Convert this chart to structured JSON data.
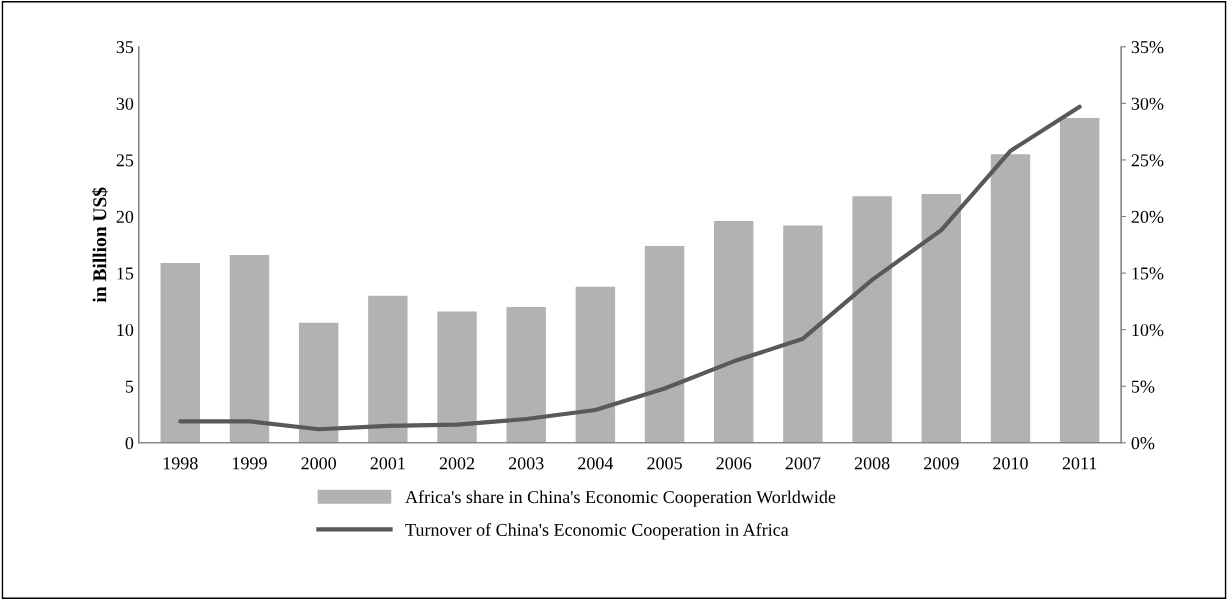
{
  "chart_data": {
    "type": "bar",
    "categories": [
      "1998",
      "1999",
      "2000",
      "2001",
      "2002",
      "2003",
      "2004",
      "2005",
      "2006",
      "2007",
      "2008",
      "2009",
      "2010",
      "2011"
    ],
    "ylabel": "in Billion US$",
    "ylim": [
      0,
      35
    ],
    "yticks": [
      0,
      5,
      10,
      15,
      20,
      25,
      30,
      35
    ],
    "y2lim": [
      0,
      35
    ],
    "y2ticks": [
      {
        "value": 0,
        "label": "0%"
      },
      {
        "value": 5,
        "label": "5%"
      },
      {
        "value": 10,
        "label": "10%"
      },
      {
        "value": 15,
        "label": "15%"
      },
      {
        "value": 20,
        "label": "20%"
      },
      {
        "value": 25,
        "label": "25%"
      },
      {
        "value": 30,
        "label": "30%"
      },
      {
        "value": 35,
        "label": "35%"
      }
    ],
    "legend": "bottom",
    "grid": false,
    "series": [
      {
        "name": "Africa's share in China's Economic Cooperation Worldwide",
        "axis": "y2",
        "color": "#b2b2b2",
        "values": [
          15.9,
          16.6,
          10.6,
          13.0,
          11.6,
          12.0,
          13.8,
          17.4,
          19.6,
          19.2,
          21.8,
          22.0,
          25.5,
          28.7
        ]
      },
      {
        "name": "Turnover of China's Economic Cooperation in Africa",
        "type": "line",
        "axis": "y",
        "color": "#595959",
        "values": [
          1.9,
          1.9,
          1.2,
          1.5,
          1.6,
          2.1,
          2.9,
          4.8,
          7.2,
          9.2,
          14.4,
          18.8,
          25.8,
          29.7
        ]
      }
    ]
  }
}
